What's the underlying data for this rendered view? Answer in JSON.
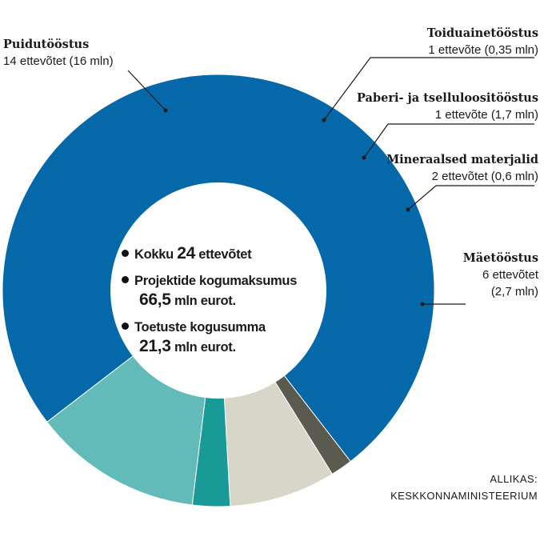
{
  "chart_data": {
    "type": "pie",
    "donut": true,
    "slices": [
      {
        "label": "Puidutööstus",
        "detail": "14 ettevõtet (16 mln)",
        "value": 16,
        "color": "#0568a8"
      },
      {
        "label": "Toiduainetööstus",
        "detail": "1 ettevõte (0,35 mln)",
        "value": 0.35,
        "color": "#5a5a4e"
      },
      {
        "label": "Paberi- ja tselluloositööstus",
        "detail": "1 ettevõte (1,7 mln)",
        "value": 1.7,
        "color": "#d8d6c8"
      },
      {
        "label": "Mineraalsed materjalid",
        "detail": "2 ettevõtet (0,6 mln)",
        "value": 0.6,
        "color": "#1a9a96"
      },
      {
        "label": "Mäetööstus",
        "detail_line1": "6 ettevõtet",
        "detail_line2": "(2,7 mln)",
        "value": 2.7,
        "color": "#62bbb8"
      }
    ]
  },
  "center": {
    "line1_prefix": "Kokku ",
    "line1_number": "24",
    "line1_suffix": " ettevõtet",
    "line2": "Projektide kogumaksumus",
    "line3_number": "66,5",
    "line3_suffix": " mln eurot.",
    "line4": "Toetuste kogusumma",
    "line5_number": "21,3",
    "line5_suffix": " mln eurot."
  },
  "source": {
    "line1": "ALLIKAS:",
    "line2": "KESKKONNAMINISTEERIUM"
  }
}
